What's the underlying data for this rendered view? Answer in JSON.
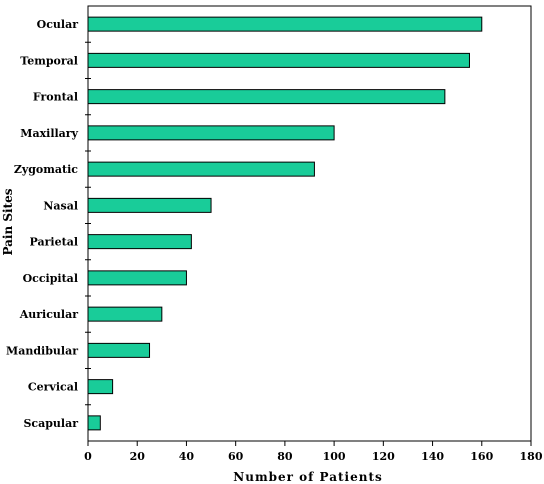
{
  "chart_data": {
    "type": "bar",
    "orientation": "horizontal",
    "categories": [
      "Ocular",
      "Temporal",
      "Frontal",
      "Maxillary",
      "Zygomatic",
      "Nasal",
      "Parietal",
      "Occipital",
      "Auricular",
      "Mandibular",
      "Cervical",
      "Scapular"
    ],
    "values": [
      160,
      155,
      145,
      100,
      92,
      50,
      42,
      40,
      30,
      25,
      10,
      5
    ],
    "xlabel": "Number of Patients",
    "ylabel": "Pain Sites",
    "xlim": [
      0,
      180
    ],
    "xticks": [
      0,
      20,
      40,
      60,
      80,
      100,
      120,
      140,
      160,
      180
    ],
    "grid": false,
    "bar_color": "#19CC99"
  }
}
